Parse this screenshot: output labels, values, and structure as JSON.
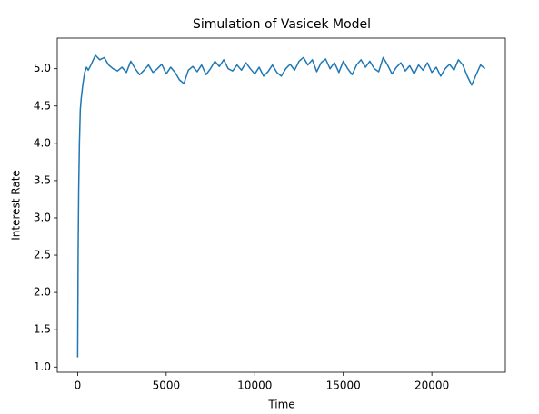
{
  "chart_data": {
    "type": "line",
    "title": "Simulation of Vasicek Model",
    "xlabel": "Time",
    "ylabel": "Interest Rate",
    "x": [
      0,
      30,
      60,
      100,
      150,
      200,
      300,
      400,
      500,
      600,
      750,
      1000,
      1250,
      1500,
      1750,
      2000,
      2250,
      2500,
      2750,
      3000,
      3250,
      3500,
      3750,
      4000,
      4250,
      4500,
      4750,
      5000,
      5250,
      5500,
      5750,
      6000,
      6250,
      6500,
      6750,
      7000,
      7250,
      7500,
      7750,
      8000,
      8250,
      8500,
      8750,
      9000,
      9250,
      9500,
      9750,
      10000,
      10250,
      10500,
      10750,
      11000,
      11250,
      11500,
      11750,
      12000,
      12250,
      12500,
      12750,
      13000,
      13250,
      13500,
      13750,
      14000,
      14250,
      14500,
      14750,
      15000,
      15250,
      15500,
      15750,
      16000,
      16250,
      16500,
      16750,
      17000,
      17250,
      17500,
      17750,
      18000,
      18250,
      18500,
      18750,
      19000,
      19250,
      19500,
      19750,
      20000,
      20250,
      20500,
      20750,
      21000,
      21250,
      21500,
      21750,
      22000,
      22250,
      22500,
      22750,
      23000
    ],
    "series": [
      {
        "name": "Interest Rate",
        "color": "#1f77b4",
        "values": [
          1.13,
          2.6,
          3.4,
          4.0,
          4.45,
          4.6,
          4.8,
          4.95,
          5.02,
          4.98,
          5.05,
          5.18,
          5.12,
          5.15,
          5.05,
          5.0,
          4.97,
          5.02,
          4.95,
          5.1,
          5.0,
          4.92,
          4.98,
          5.05,
          4.95,
          5.0,
          5.06,
          4.93,
          5.02,
          4.95,
          4.85,
          4.8,
          4.98,
          5.03,
          4.96,
          5.05,
          4.92,
          5.0,
          5.1,
          5.03,
          5.12,
          5.0,
          4.97,
          5.05,
          4.98,
          5.08,
          5.0,
          4.93,
          5.02,
          4.9,
          4.96,
          5.05,
          4.95,
          4.9,
          5.0,
          5.06,
          4.98,
          5.1,
          5.15,
          5.05,
          5.12,
          4.96,
          5.08,
          5.13,
          5.0,
          5.08,
          4.95,
          5.1,
          5.0,
          4.92,
          5.05,
          5.12,
          5.02,
          5.1,
          5.0,
          4.96,
          5.15,
          5.05,
          4.93,
          5.02,
          5.08,
          4.97,
          5.04,
          4.93,
          5.05,
          4.98,
          5.08,
          4.95,
          5.02,
          4.9,
          5.0,
          5.06,
          4.98,
          5.12,
          5.05,
          4.9,
          4.78,
          4.92,
          5.05,
          5.0
        ]
      }
    ],
    "xlim": [
      -1150,
      24150
    ],
    "xticks": [
      0,
      5000,
      10000,
      15000,
      20000
    ],
    "ylim": [
      0.93,
      5.41
    ],
    "yticks": [
      {
        "value": 1,
        "label": "1.0"
      },
      1.5,
      {
        "value": 2,
        "label": "2.0"
      },
      2.5,
      {
        "value": 3,
        "label": "3.0"
      },
      3.5,
      {
        "value": 4,
        "label": "4.0"
      },
      4.5,
      {
        "value": 5,
        "label": "5.0"
      }
    ]
  }
}
